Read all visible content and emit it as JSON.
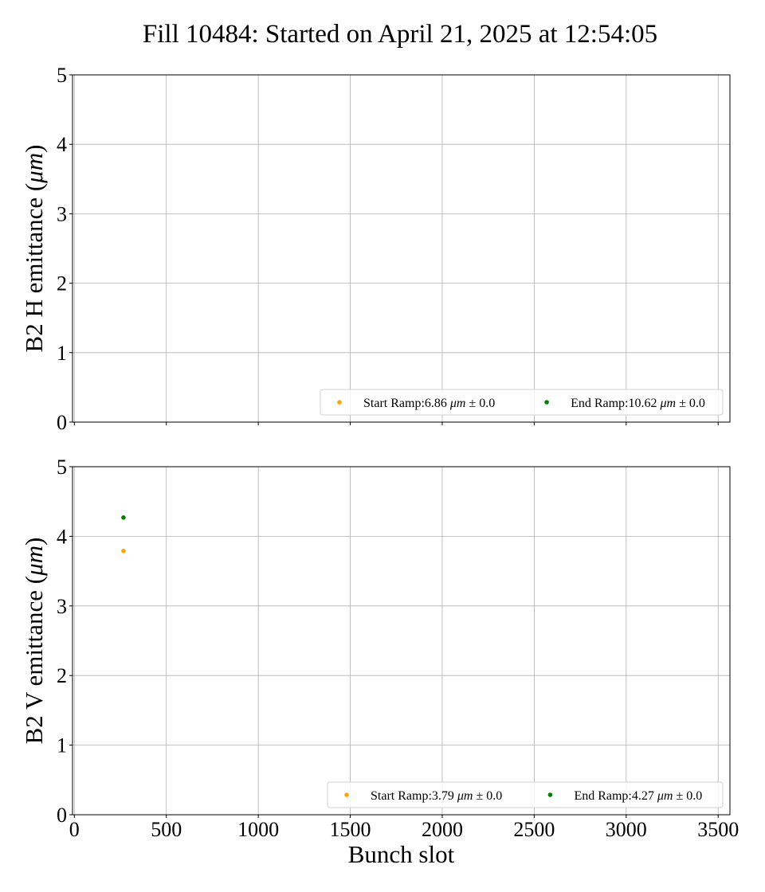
{
  "figure": {
    "title": "Fill 10484: Started on April 21, 2025 at 12:54:05"
  },
  "chart_data": [
    {
      "type": "scatter",
      "title": "",
      "xlabel": "",
      "ylabel_main": "B2 H emittance (",
      "ylabel_mu": "μm",
      "ylabel_close": ")",
      "xlim": [
        -10,
        3564
      ],
      "ylim": [
        0,
        5
      ],
      "xticks": [
        0,
        500,
        1000,
        1500,
        2000,
        2500,
        3000,
        3500
      ],
      "xtick_labels_visible": false,
      "yticks": [
        0,
        1,
        2,
        3,
        4,
        5
      ],
      "grid": true,
      "legend_position": "lower-right",
      "series": [
        {
          "name": "Start Ramp",
          "legend_prefix": "Start Ramp:6.86 ",
          "legend_unit": "μm",
          "legend_suffix": " ± 0.0",
          "color": "#ffa500",
          "points": []
        },
        {
          "name": "End Ramp",
          "legend_prefix": "End Ramp:10.62 ",
          "legend_unit": "μm",
          "legend_suffix": " ± 0.0",
          "color": "#008000",
          "points": []
        }
      ]
    },
    {
      "type": "scatter",
      "title": "",
      "xlabel": "Bunch slot",
      "ylabel_main": "B2 V emittance (",
      "ylabel_mu": "μm",
      "ylabel_close": ")",
      "xlim": [
        -10,
        3564
      ],
      "ylim": [
        0,
        5
      ],
      "xticks": [
        0,
        500,
        1000,
        1500,
        2000,
        2500,
        3000,
        3500
      ],
      "xtick_labels_visible": true,
      "yticks": [
        0,
        1,
        2,
        3,
        4,
        5
      ],
      "grid": true,
      "legend_position": "lower-right",
      "series": [
        {
          "name": "Start Ramp",
          "legend_prefix": "Start Ramp:3.79 ",
          "legend_unit": "μm",
          "legend_suffix": " ± 0.0",
          "color": "#ffa500",
          "points": [
            [
              267,
              3.79
            ]
          ]
        },
        {
          "name": "End Ramp",
          "legend_prefix": "End Ramp:4.27 ",
          "legend_unit": "μm",
          "legend_suffix": " ± 0.0",
          "color": "#008000",
          "points": [
            [
              267,
              4.27
            ]
          ]
        }
      ]
    }
  ]
}
